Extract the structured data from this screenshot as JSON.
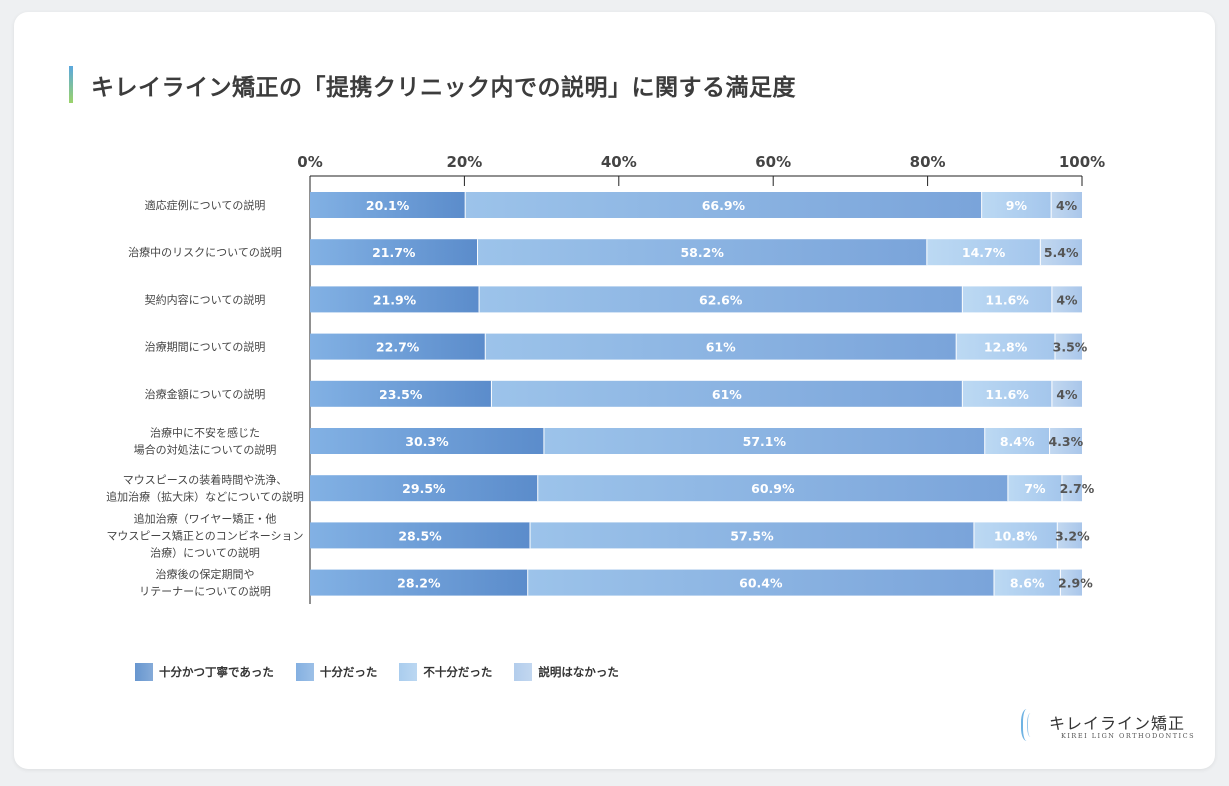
{
  "title": "キレイライン矯正の「提携クリニック内での説明」に関する満足度",
  "colors": {
    "series": [
      "#6796cf",
      "#84b0e1",
      "#aacdee",
      "#b3cdec"
    ],
    "axis": "#222222",
    "tick_text": "#444444",
    "category_text": "#444444"
  },
  "logo": {
    "name": "キレイライン矯正",
    "tagline": "KIREI LIGN ORTHODONTICS"
  },
  "chart_data": {
    "type": "bar",
    "orientation": "horizontal",
    "stacked": true,
    "title": "キレイライン矯正の「提携クリニック内での説明」に関する満足度",
    "xlim": [
      0,
      100
    ],
    "x_ticks": [
      "0%",
      "20%",
      "40%",
      "60%",
      "80%",
      "100%"
    ],
    "x_tick_values": [
      0,
      20,
      40,
      60,
      80,
      100
    ],
    "x_axis_position": "top",
    "grid": false,
    "legend_position": "bottom-left",
    "categories": [
      [
        "適応症例についての説明"
      ],
      [
        "治療中のリスクについての説明"
      ],
      [
        "契約内容についての説明"
      ],
      [
        "治療期間についての説明"
      ],
      [
        "治療金額についての説明"
      ],
      [
        "治療中に不安を感じた",
        "場合の対処法についての説明"
      ],
      [
        "マウスピースの装着時間や洗浄、",
        "追加治療（拡大床）などについての説明"
      ],
      [
        "追加治療（ワイヤー矯正・他",
        "マウスピース矯正とのコンビネーション",
        "治療）についての説明"
      ],
      [
        "治療後の保定期間や",
        "リテーナーについての説明"
      ]
    ],
    "series": [
      {
        "name": "十分かつ丁寧であった",
        "values": [
          20.1,
          21.7,
          21.9,
          22.7,
          23.5,
          30.3,
          29.5,
          28.5,
          28.2
        ],
        "labels": [
          "20.1%",
          "21.7%",
          "21.9%",
          "22.7%",
          "23.5%",
          "30.3%",
          "29.5%",
          "28.5%",
          "28.2%"
        ]
      },
      {
        "name": "十分だった",
        "values": [
          66.9,
          58.2,
          62.6,
          61,
          61,
          57.1,
          60.9,
          57.5,
          60.4
        ],
        "labels": [
          "66.9%",
          "58.2%",
          "62.6%",
          "61%",
          "61%",
          "57.1%",
          "60.9%",
          "57.5%",
          "60.4%"
        ]
      },
      {
        "name": "不十分だった",
        "values": [
          9,
          14.7,
          11.6,
          12.8,
          11.6,
          8.4,
          7,
          10.8,
          8.6
        ],
        "labels": [
          "9%",
          "14.7%",
          "11.6%",
          "12.8%",
          "11.6%",
          "8.4%",
          "7%",
          "10.8%",
          "8.6%"
        ]
      },
      {
        "name": "説明はなかった",
        "values": [
          4,
          5.4,
          4,
          3.5,
          4,
          4.3,
          2.7,
          3.2,
          2.9
        ],
        "labels": [
          "4%",
          "5.4%",
          "4%",
          "3.5%",
          "4%",
          "4.3%",
          "2.7%",
          "3.2%",
          "2.9%"
        ]
      }
    ]
  }
}
